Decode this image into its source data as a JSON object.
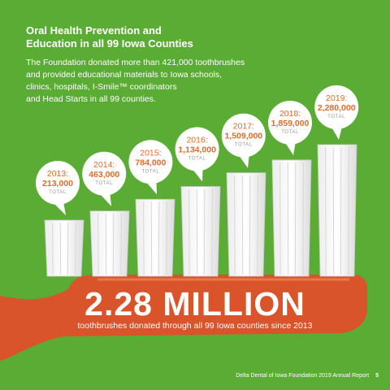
{
  "header": {
    "title_lines": [
      "Oral Health Prevention and",
      "Education in all 99 Iowa Counties"
    ],
    "intro_lines": [
      "The Foundation donated more than 421,000 toothbrushes",
      "and provided educational materials to Iowa schools,",
      "clinics, hospitals, I-Smile™ coordinators",
      "and Head Starts in all 99 counties."
    ]
  },
  "chart_data": {
    "type": "bar",
    "categories": [
      "2013:",
      "2014:",
      "2015:",
      "2016:",
      "2017:",
      "2018:",
      "2019:"
    ],
    "values": [
      213000,
      463000,
      784000,
      1134000,
      1509000,
      1859000,
      2280000
    ],
    "value_labels": [
      "213,000",
      "463,000",
      "784,000",
      "1,134,000",
      "1,509,000",
      "1,859,000",
      "2,280,000"
    ],
    "unit_label": "TOTAL",
    "ylim": [
      0,
      2280000
    ]
  },
  "summary": {
    "big_number": "2.28 MILLION",
    "caption": "toothbrushes donated through all 99 Iowa counties since 2013"
  },
  "footer": {
    "report": "Delta Dental of Iowa Foundation 2019 Annual Report",
    "page_number": "5"
  },
  "colors": {
    "background": "#5aac34",
    "accent_orange": "#e36b2a",
    "toothbrush_handle": "#d9542b",
    "bristle_white": "#ffffff"
  }
}
